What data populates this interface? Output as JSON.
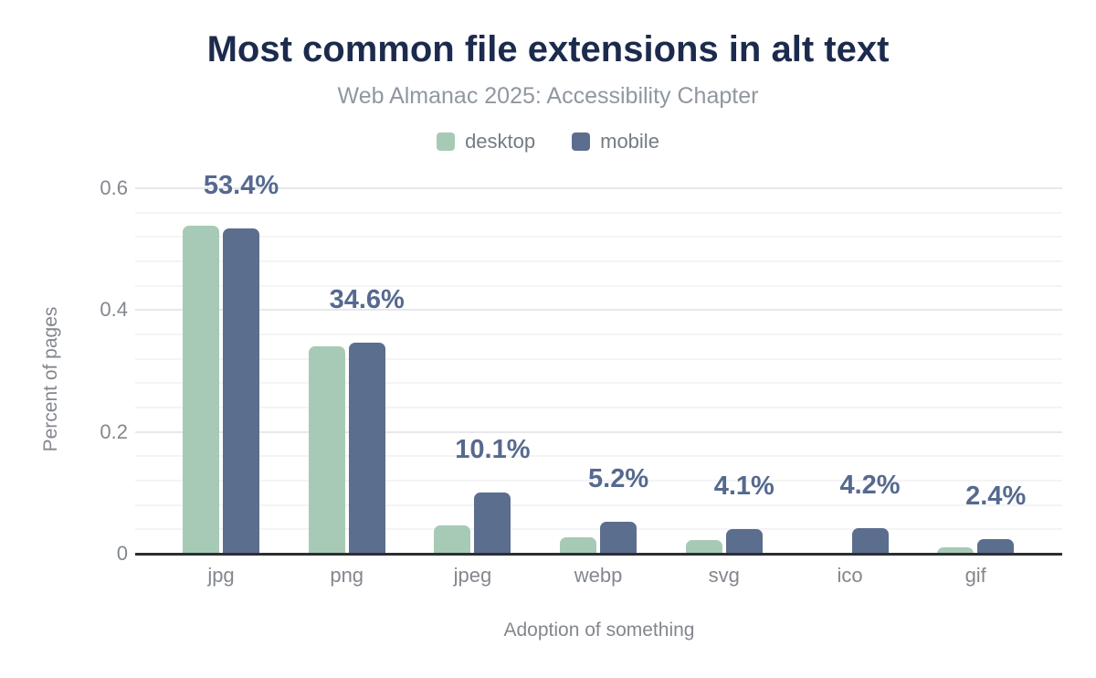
{
  "chart_data": {
    "type": "bar",
    "title": "Most common file extensions in alt text",
    "subtitle": "Web Almanac 2025: Accessibility Chapter",
    "xlabel": "Adoption of something",
    "ylabel": "Percent of pages",
    "categories": [
      "jpg",
      "png",
      "jpeg",
      "webp",
      "svg",
      "ico",
      "gif"
    ],
    "series": [
      {
        "name": "desktop",
        "values_percent": [
          53.8,
          34.0,
          4.7,
          2.7,
          2.3,
          0,
          1.1
        ]
      },
      {
        "name": "mobile",
        "values_percent": [
          53.4,
          34.6,
          10.1,
          5.2,
          4.1,
          4.2,
          2.4
        ]
      }
    ],
    "value_labels": [
      "53.4%",
      "34.6%",
      "10.1%",
      "5.2%",
      "4.1%",
      "4.2%",
      "2.4%"
    ],
    "value_labels_series": "mobile",
    "y_ticks": [
      "0",
      "0.2",
      "0.4",
      "0.6"
    ],
    "ylim": [
      0,
      0.6
    ],
    "y_minor_step": 0.04,
    "grid": true,
    "legend_position": "top",
    "colors": {
      "desktop": "#a7cab6",
      "mobile": "#5c6e8e",
      "value_label": "#56698f",
      "title": "#1c2b4d",
      "subtitle": "#9097a0",
      "axis_text": "#83878e",
      "legend_text": "#747b86"
    }
  }
}
